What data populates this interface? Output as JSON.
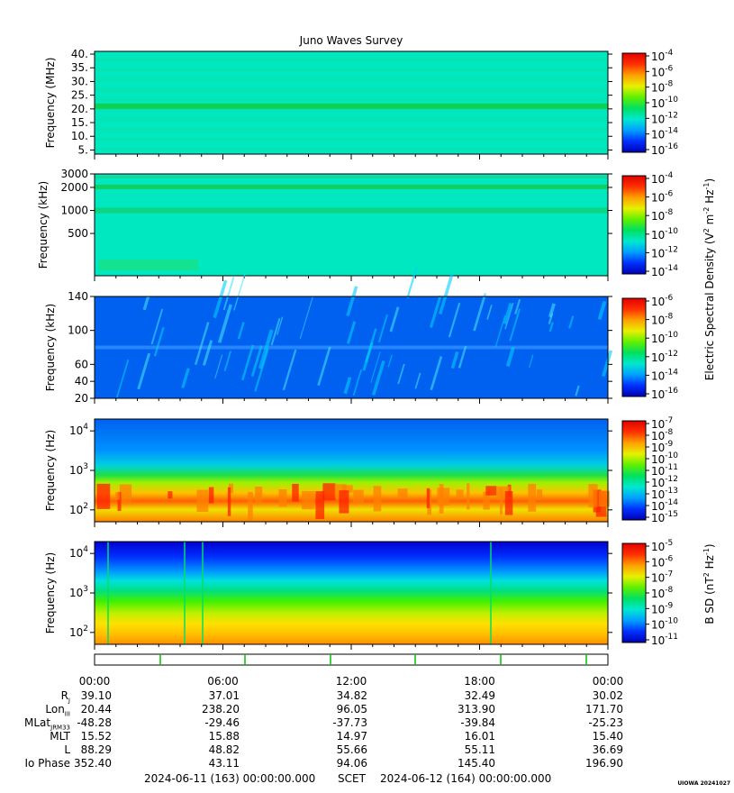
{
  "title": "Juno Waves Survey",
  "colors": {
    "cbar_stops": [
      "#0000b0",
      "#0030ff",
      "#00a0ff",
      "#00e8d0",
      "#00e060",
      "#60f000",
      "#e8f000",
      "#ffa000",
      "#ff3000",
      "#e00000"
    ]
  },
  "chart_data": [
    {
      "type": "heatmap",
      "ylabel": "Frequency (MHz)",
      "yticks": [
        "40.",
        "35.",
        "30.",
        "25.",
        "20.",
        "15.",
        "10.",
        "5."
      ],
      "ytick_values": [
        40,
        35,
        30,
        25,
        20,
        15,
        10,
        5
      ],
      "ylim": [
        3.5,
        41
      ],
      "yscale": "linear",
      "cbar_ticks": [
        "-4",
        "-6",
        "-8",
        "-10",
        "-12",
        "-14",
        "-16"
      ],
      "background": "#00e8c0"
    },
    {
      "type": "heatmap",
      "ylabel": "Frequency (kHz)",
      "yticks": [
        "3000",
        "2000",
        "1000",
        "500"
      ],
      "ytick_values": [
        3000,
        2000,
        1000,
        500
      ],
      "ylim": [
        140,
        3000
      ],
      "yscale": "log",
      "cbar_ticks": [
        "-4",
        "-6",
        "-8",
        "-10",
        "-12",
        "-14"
      ],
      "background": "#00e8c0"
    },
    {
      "type": "heatmap",
      "ylabel": "Frequency (kHz)",
      "yticks": [
        "140",
        "100",
        "60",
        "40",
        "20"
      ],
      "ytick_values": [
        140,
        100,
        60,
        40,
        20
      ],
      "ylim": [
        20,
        140
      ],
      "yscale": "linear",
      "cbar_ticks": [
        "-6",
        "-8",
        "-10",
        "-12",
        "-14",
        "-16"
      ],
      "background": "#0060f0"
    },
    {
      "type": "heatmap",
      "ylabel": "Frequency (Hz)",
      "yticks": [
        "4",
        "3",
        "2"
      ],
      "ytick_values": [
        10000,
        1000,
        100
      ],
      "ylim": [
        50,
        20000
      ],
      "yscale": "log",
      "cbar_ticks": [
        "-7",
        "-8",
        "-9",
        "-10",
        "-11",
        "-12",
        "-13",
        "-14",
        "-15"
      ],
      "background": "#0060f0"
    },
    {
      "type": "heatmap",
      "ylabel": "Frequency (Hz)",
      "yticks": [
        "4",
        "3",
        "2"
      ],
      "ytick_values": [
        10000,
        1000,
        100
      ],
      "ylim": [
        50,
        20000
      ],
      "yscale": "log",
      "cbar_ticks": [
        "-5",
        "-6",
        "-7",
        "-8",
        "-9",
        "-10",
        "-11"
      ],
      "background": "#0020e0"
    }
  ],
  "cbar_labels": {
    "electric": "Electric Spectral Density (V",
    "electric_tail": "m",
    "electric_tail2": "Hz",
    "magnetic": "B SD (nT",
    "magnetic_tail": "Hz"
  },
  "time_ticks": [
    "00:00",
    "06:00",
    "12:00",
    "18:00",
    "00:00"
  ],
  "ephemeris": {
    "rows": [
      {
        "label": "R",
        "sub": "J",
        "values": [
          "39.10",
          "37.01",
          "34.82",
          "32.49",
          "30.02"
        ]
      },
      {
        "label": "Lon",
        "sub": "III",
        "values": [
          "20.44",
          "238.20",
          "96.05",
          "313.90",
          "171.70"
        ]
      },
      {
        "label": "MLat",
        "sub": "JRM33",
        "values": [
          "-48.28",
          "-29.46",
          "-37.73",
          "-39.84",
          "-25.23"
        ]
      },
      {
        "label": "MLT",
        "sub": "",
        "values": [
          "15.52",
          "15.88",
          "14.97",
          "16.01",
          "15.40"
        ]
      },
      {
        "label": "L",
        "sub": "",
        "values": [
          "88.29",
          "48.82",
          "55.66",
          "55.11",
          "36.69"
        ]
      },
      {
        "label": "Io Phase",
        "sub": "",
        "values": [
          "352.40",
          "43.11",
          "94.06",
          "145.40",
          "196.90"
        ]
      }
    ]
  },
  "footer": {
    "start": "2024-06-11 (163) 00:00:00.000",
    "scet": "SCET",
    "end": "2024-06-12 (164) 00:00:00.000"
  },
  "credit": "UIOWA 20241027"
}
